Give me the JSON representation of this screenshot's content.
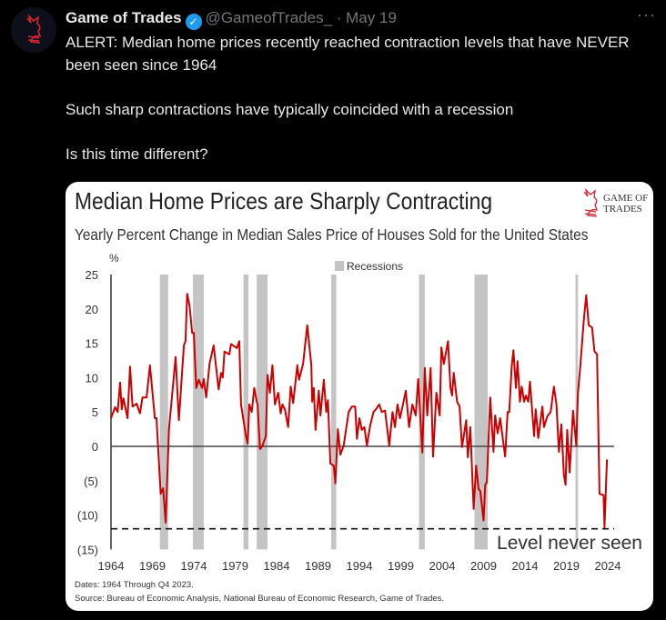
{
  "tweet": {
    "name": "Game of Trades",
    "handle": "@GameofTrades_",
    "date": "· May 19",
    "more_icon": "more-icon",
    "lines": [
      "ALERT: Median home prices recently reached contraction levels that have NEVER been seen since 1964",
      "Such sharp contractions have typically coincided with a recession",
      "Is this time different?"
    ]
  },
  "card": {
    "logo_text_1": "GAME OF",
    "logo_text_2": "TRADES",
    "footnote_dates": "Dates: 1964 Through Q4 2023.",
    "footnote_source": "Source: Bureau of Economic Analysis, National Bureau of Economic Research, Game of Trades."
  },
  "colors": {
    "line": "#cc0000",
    "recession": "#c4c4c4",
    "accent": "#1d9bf0"
  },
  "chart_data": {
    "type": "line",
    "title": "Median Home Prices are Sharply Contracting",
    "subtitle": "Yearly Percent Change in Median Sales Price of Houses Sold for the United States",
    "ylabel": "%",
    "legend": "Recessions",
    "legend_placement": "top-center",
    "annotation": "Level never seen",
    "threshold": -12,
    "ylim": [
      -15,
      25
    ],
    "xlim": [
      1964,
      2024
    ],
    "yticks": [
      25,
      20,
      15,
      10,
      5,
      0,
      -5,
      -10,
      -15
    ],
    "ytick_labels": [
      "25",
      "20",
      "15",
      "10",
      "5",
      "0",
      "(5)",
      "(10)",
      "(15)"
    ],
    "xticks": [
      "1964",
      "1969",
      "1974",
      "1979",
      "1984",
      "1989",
      "1994",
      "1999",
      "2004",
      "2009",
      "2014",
      "2019",
      "2024"
    ],
    "recessions": [
      [
        1969.9,
        1970.9
      ],
      [
        1973.9,
        1975.2
      ],
      [
        1980.0,
        1980.6
      ],
      [
        1981.6,
        1982.9
      ],
      [
        1990.6,
        1991.2
      ],
      [
        2001.2,
        2001.9
      ],
      [
        2007.9,
        2009.5
      ],
      [
        2020.1,
        2020.4
      ]
    ],
    "series": [
      [
        1964.0,
        4.1
      ],
      [
        1964.5,
        5.7
      ],
      [
        1964.8,
        5
      ],
      [
        1965.1,
        9.3
      ],
      [
        1965.3,
        5.4
      ],
      [
        1965.5,
        7
      ],
      [
        1966.0,
        4.1
      ],
      [
        1966.3,
        11.6
      ],
      [
        1966.6,
        5.8
      ],
      [
        1967.1,
        6.2
      ],
      [
        1967.5,
        4.8
      ],
      [
        1967.8,
        7.1
      ],
      [
        1968.3,
        7.1
      ],
      [
        1968.7,
        11.8
      ],
      [
        1969.3,
        4.1
      ],
      [
        1969.5,
        4.1
      ],
      [
        1970.0,
        -6.9
      ],
      [
        1970.3,
        -6.1
      ],
      [
        1970.6,
        -11.1
      ],
      [
        1971.0,
        2.5
      ],
      [
        1971.8,
        13
      ],
      [
        1972.2,
        3.8
      ],
      [
        1972.8,
        14.7
      ],
      [
        1973.0,
        15.3
      ],
      [
        1973.2,
        22.2
      ],
      [
        1973.5,
        20.4
      ],
      [
        1973.8,
        16.5
      ],
      [
        1974.0,
        16.5
      ],
      [
        1974.3,
        8.5
      ],
      [
        1974.6,
        9.7
      ],
      [
        1975.0,
        8.5
      ],
      [
        1975.2,
        9.8
      ],
      [
        1975.5,
        7.1
      ],
      [
        1975.9,
        12
      ],
      [
        1976.4,
        14.7
      ],
      [
        1977.0,
        8.3
      ],
      [
        1977.3,
        10.7
      ],
      [
        1977.5,
        10
      ],
      [
        1977.7,
        13.8
      ],
      [
        1978.3,
        13.4
      ],
      [
        1978.5,
        14.9
      ],
      [
        1979.2,
        14.3
      ],
      [
        1979.5,
        15.3
      ],
      [
        1979.7,
        6.1
      ],
      [
        1980.3,
        1.5
      ],
      [
        1980.5,
        0.4
      ],
      [
        1980.7,
        6.1
      ],
      [
        1981.0,
        5
      ],
      [
        1981.3,
        8.5
      ],
      [
        1981.6,
        6.5
      ],
      [
        1981.7,
        6.1
      ],
      [
        1982.0,
        -0.4
      ],
      [
        1982.3,
        0.1
      ],
      [
        1982.7,
        1.5
      ],
      [
        1982.9,
        10.4
      ],
      [
        1983.2,
        7.8
      ],
      [
        1983.5,
        11.8
      ],
      [
        1983.8,
        6.1
      ],
      [
        1984.2,
        7.8
      ],
      [
        1984.5,
        4.8
      ],
      [
        1984.7,
        6.1
      ],
      [
        1985.0,
        5.4
      ],
      [
        1985.4,
        2.8
      ],
      [
        1985.7,
        8.7
      ],
      [
        1986.0,
        6.3
      ],
      [
        1986.5,
        11.8
      ],
      [
        1986.7,
        9.7
      ],
      [
        1987.2,
        12
      ],
      [
        1987.7,
        17.6
      ],
      [
        1988.2,
        11.8
      ],
      [
        1988.3,
        6.5
      ],
      [
        1988.5,
        8.5
      ],
      [
        1988.7,
        2.4
      ],
      [
        1989.1,
        8.1
      ],
      [
        1989.3,
        4.5
      ],
      [
        1989.7,
        9.7
      ],
      [
        1990.0,
        5
      ],
      [
        1990.2,
        6.7
      ],
      [
        1990.5,
        -2.5
      ],
      [
        1990.9,
        -2.8
      ],
      [
        1991.1,
        -5.4
      ],
      [
        1991.4,
        2.5
      ],
      [
        1991.7,
        -1.2
      ],
      [
        1992.1,
        0.1
      ],
      [
        1992.7,
        5
      ],
      [
        1993.1,
        5.8
      ],
      [
        1993.5,
        5.8
      ],
      [
        1993.7,
        1.1
      ],
      [
        1994.0,
        4.1
      ],
      [
        1994.3,
        2.4
      ],
      [
        1994.6,
        2.8
      ],
      [
        1994.9,
        0.1
      ],
      [
        1995.3,
        3
      ],
      [
        1995.7,
        5
      ],
      [
        1996.0,
        5.4
      ],
      [
        1996.4,
        6.1
      ],
      [
        1996.7,
        5
      ],
      [
        1997.1,
        5.2
      ],
      [
        1997.6,
        0.1
      ],
      [
        1998.0,
        5
      ],
      [
        1998.3,
        2.8
      ],
      [
        1998.6,
        6.1
      ],
      [
        1998.9,
        4.1
      ],
      [
        1999.3,
        6.3
      ],
      [
        1999.6,
        8.1
      ],
      [
        2000.0,
        2.8
      ],
      [
        2000.4,
        6.1
      ],
      [
        2000.8,
        4.5
      ],
      [
        2001.1,
        9.8
      ],
      [
        2001.6,
        -0.9
      ],
      [
        2001.9,
        11.4
      ],
      [
        2002.2,
        4.5
      ],
      [
        2002.6,
        11.4
      ],
      [
        2002.9,
        -1.5
      ],
      [
        2003.3,
        7.8
      ],
      [
        2003.7,
        4.5
      ],
      [
        2003.9,
        14.4
      ],
      [
        2004.2,
        12
      ],
      [
        2004.7,
        15.3
      ],
      [
        2005.0,
        8.5
      ],
      [
        2005.2,
        7.4
      ],
      [
        2005.4,
        10.7
      ],
      [
        2005.8,
        6.5
      ],
      [
        2006.1,
        5.8
      ],
      [
        2006.4,
        -0.1
      ],
      [
        2006.9,
        3.8
      ],
      [
        2007.1,
        -1.6
      ],
      [
        2007.4,
        2.8
      ],
      [
        2007.8,
        -9.1
      ],
      [
        2008.1,
        -2.8
      ],
      [
        2008.4,
        -6.2
      ],
      [
        2008.6,
        -6.5
      ],
      [
        2009.0,
        -10.8
      ],
      [
        2009.2,
        -5.6
      ],
      [
        2009.4,
        -5.2
      ],
      [
        2009.8,
        7.1
      ],
      [
        2010.2,
        -0.8
      ],
      [
        2010.4,
        4.5
      ],
      [
        2010.7,
        1.9
      ],
      [
        2011.0,
        4.1
      ],
      [
        2011.6,
        -1.5
      ],
      [
        2011.9,
        5
      ],
      [
        2012.1,
        5
      ],
      [
        2012.4,
        11.6
      ],
      [
        2012.6,
        14
      ],
      [
        2012.9,
        8.5
      ],
      [
        2013.1,
        12.4
      ],
      [
        2013.4,
        6.5
      ],
      [
        2013.6,
        8.7
      ],
      [
        2013.9,
        6.5
      ],
      [
        2014.1,
        7.4
      ],
      [
        2014.4,
        6.5
      ],
      [
        2014.6,
        9.4
      ],
      [
        2015.1,
        1.5
      ],
      [
        2015.3,
        5.4
      ],
      [
        2015.6,
        1.2
      ],
      [
        2016.1,
        5.8
      ],
      [
        2016.3,
        2.8
      ],
      [
        2016.7,
        4.4
      ],
      [
        2017.1,
        5
      ],
      [
        2017.5,
        8.7
      ],
      [
        2017.8,
        6.1
      ],
      [
        2018.1,
        -0.8
      ],
      [
        2018.4,
        3.2
      ],
      [
        2018.7,
        -4.2
      ],
      [
        2018.9,
        -5.6
      ],
      [
        2019.1,
        2.4
      ],
      [
        2019.4,
        -3.8
      ],
      [
        2019.8,
        5.2
      ],
      [
        2020.2,
        0.1
      ],
      [
        2020.4,
        7.7
      ],
      [
        2020.7,
        12
      ],
      [
        2021.1,
        18.3
      ],
      [
        2021.4,
        22
      ],
      [
        2021.7,
        17.6
      ],
      [
        2022.1,
        17.3
      ],
      [
        2022.4,
        13.8
      ],
      [
        2022.7,
        13.4
      ],
      [
        2023.0,
        -6.9
      ],
      [
        2023.5,
        -7.1
      ],
      [
        2023.6,
        -11.8
      ],
      [
        2023.9,
        -1.9
      ]
    ]
  }
}
